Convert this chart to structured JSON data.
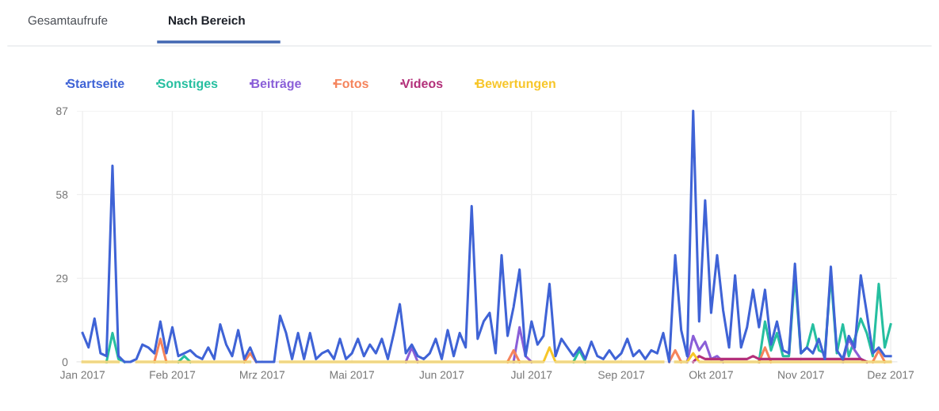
{
  "chart_data": {
    "type": "line",
    "title": "Nach Bereich",
    "annotations": [
      "Gesamtaufrufe"
    ],
    "categories": [
      "Jan 2017",
      null,
      null,
      null,
      null,
      null,
      null,
      null,
      null,
      null,
      null,
      null,
      null,
      null,
      null,
      "Feb 2017",
      null,
      null,
      null,
      null,
      null,
      null,
      null,
      null,
      null,
      null,
      null,
      null,
      null,
      null,
      "Mrz 2017",
      null,
      null,
      null,
      null,
      null,
      null,
      null,
      null,
      null,
      null,
      null,
      null,
      null,
      null,
      "Mai 2017",
      null,
      null,
      null,
      null,
      null,
      null,
      null,
      null,
      null,
      null,
      null,
      null,
      null,
      null,
      "Jun 2017",
      null,
      null,
      null,
      null,
      null,
      null,
      null,
      null,
      null,
      null,
      null,
      null,
      null,
      null,
      "Jul 2017",
      null,
      null,
      null,
      null,
      null,
      null,
      null,
      null,
      null,
      null,
      null,
      null,
      null,
      null,
      "Sep 2017",
      null,
      null,
      null,
      null,
      null,
      null,
      null,
      null,
      null,
      null,
      null,
      null,
      null,
      null,
      "Okt 2017",
      null,
      null,
      null,
      null,
      null,
      null,
      null,
      null,
      null,
      null,
      null,
      null,
      null,
      null,
      "Nov 2017",
      null,
      null,
      null,
      null,
      null,
      null,
      null,
      null,
      null,
      null,
      null,
      null,
      null,
      null,
      "Dez 2017"
    ],
    "ylim": [
      0,
      87
    ],
    "yticks": [
      0,
      29,
      58,
      87
    ],
    "grid": true,
    "legend": "top left",
    "marker": "none",
    "line_style": "solid",
    "series": [
      {
        "name": "Startseite",
        "color": "#3f63d6",
        "values": [
          10,
          5,
          15,
          3,
          2,
          68,
          2,
          0,
          0,
          1,
          6,
          5,
          3,
          14,
          3,
          12,
          2,
          3,
          4,
          2,
          1,
          5,
          1,
          13,
          6,
          2,
          11,
          1,
          5,
          0,
          0,
          0,
          0,
          16,
          10,
          1,
          10,
          1,
          10,
          1,
          3,
          4,
          1,
          8,
          1,
          3,
          8,
          2,
          6,
          3,
          8,
          1,
          10,
          20,
          3,
          6,
          2,
          1,
          3,
          8,
          1,
          11,
          2,
          10,
          5,
          54,
          8,
          14,
          17,
          3,
          37,
          9,
          19,
          32,
          2,
          14,
          6,
          9,
          27,
          2,
          8,
          5,
          2,
          5,
          1,
          7,
          2,
          1,
          4,
          1,
          3,
          8,
          2,
          4,
          1,
          4,
          3,
          10,
          0,
          37,
          11,
          2,
          87,
          14,
          56,
          17,
          37,
          18,
          5,
          30,
          5,
          12,
          25,
          12,
          25,
          6,
          14,
          4,
          3,
          34,
          3,
          5,
          3,
          8,
          1,
          33,
          4,
          1,
          9,
          5,
          30,
          17,
          3,
          5,
          2,
          2
        ]
      },
      {
        "name": "Sonstiges",
        "color": "#26bfa0",
        "values": [
          null,
          null,
          null,
          null,
          0,
          10,
          1,
          0,
          null,
          null,
          null,
          null,
          null,
          null,
          null,
          null,
          0,
          2,
          0,
          null,
          null,
          null,
          null,
          null,
          null,
          null,
          null,
          null,
          null,
          null,
          null,
          null,
          null,
          null,
          null,
          null,
          null,
          null,
          null,
          null,
          null,
          null,
          null,
          null,
          null,
          null,
          null,
          null,
          null,
          null,
          null,
          null,
          null,
          null,
          null,
          null,
          null,
          null,
          null,
          null,
          null,
          null,
          null,
          null,
          null,
          null,
          null,
          null,
          null,
          null,
          null,
          null,
          null,
          null,
          null,
          null,
          null,
          null,
          null,
          null,
          null,
          null,
          0,
          4,
          0,
          null,
          null,
          null,
          null,
          null,
          null,
          null,
          null,
          null,
          null,
          null,
          null,
          null,
          null,
          null,
          null,
          null,
          null,
          null,
          null,
          null,
          null,
          null,
          null,
          null,
          null,
          null,
          null,
          0,
          14,
          4,
          10,
          2,
          2,
          30,
          3,
          5,
          13,
          4,
          3,
          30,
          3,
          13,
          2,
          8,
          15,
          10,
          2,
          27,
          5,
          13
        ]
      },
      {
        "name": "Beiträge",
        "color": "#8a5fd8",
        "values": [
          null,
          null,
          null,
          null,
          null,
          null,
          null,
          null,
          null,
          null,
          null,
          null,
          null,
          null,
          null,
          null,
          null,
          null,
          null,
          null,
          null,
          null,
          null,
          null,
          null,
          null,
          null,
          null,
          null,
          null,
          null,
          null,
          null,
          null,
          null,
          null,
          null,
          null,
          null,
          null,
          null,
          null,
          null,
          null,
          null,
          null,
          null,
          null,
          null,
          null,
          null,
          null,
          null,
          null,
          0,
          5,
          0,
          null,
          null,
          null,
          null,
          null,
          null,
          null,
          null,
          null,
          null,
          null,
          null,
          null,
          null,
          null,
          0,
          12,
          2,
          0,
          null,
          null,
          null,
          null,
          null,
          null,
          null,
          null,
          null,
          null,
          null,
          null,
          null,
          null,
          null,
          null,
          null,
          null,
          null,
          null,
          null,
          null,
          null,
          null,
          null,
          0,
          9,
          4,
          7,
          1,
          2,
          0,
          null,
          null,
          null,
          null,
          null,
          null,
          null,
          null,
          null,
          null,
          null,
          null,
          null,
          null,
          null,
          null,
          null,
          null,
          null,
          0,
          8,
          4,
          1,
          0,
          null,
          null,
          null,
          null
        ]
      },
      {
        "name": "Fotos",
        "color": "#f5845c",
        "values": [
          null,
          null,
          null,
          null,
          null,
          null,
          null,
          null,
          null,
          null,
          null,
          null,
          0,
          8,
          0,
          null,
          null,
          null,
          null,
          null,
          null,
          null,
          null,
          null,
          null,
          null,
          null,
          0,
          3,
          0,
          null,
          null,
          null,
          null,
          null,
          null,
          null,
          null,
          null,
          null,
          null,
          null,
          null,
          null,
          null,
          null,
          null,
          null,
          null,
          null,
          null,
          null,
          null,
          null,
          null,
          null,
          null,
          null,
          null,
          null,
          null,
          null,
          null,
          null,
          null,
          null,
          null,
          null,
          null,
          null,
          null,
          0,
          4,
          0,
          null,
          null,
          null,
          null,
          null,
          null,
          null,
          null,
          null,
          null,
          null,
          null,
          null,
          null,
          null,
          null,
          null,
          null,
          null,
          null,
          null,
          null,
          null,
          null,
          0,
          4,
          0,
          null,
          null,
          null,
          null,
          null,
          null,
          null,
          null,
          null,
          null,
          null,
          null,
          0,
          5,
          0,
          null,
          null,
          null,
          null,
          null,
          null,
          null,
          null,
          null,
          null,
          null,
          null,
          null,
          null,
          null,
          null,
          0,
          4,
          0,
          null
        ]
      },
      {
        "name": "Videos",
        "color": "#b3307a",
        "values": [
          null,
          null,
          null,
          null,
          null,
          null,
          null,
          null,
          null,
          null,
          null,
          null,
          null,
          null,
          null,
          null,
          null,
          null,
          null,
          null,
          null,
          null,
          null,
          null,
          null,
          null,
          null,
          null,
          null,
          null,
          null,
          null,
          null,
          null,
          null,
          null,
          null,
          null,
          null,
          null,
          null,
          null,
          null,
          null,
          null,
          null,
          null,
          null,
          null,
          null,
          null,
          null,
          null,
          null,
          null,
          null,
          null,
          null,
          null,
          null,
          null,
          null,
          null,
          null,
          null,
          null,
          null,
          null,
          null,
          null,
          null,
          null,
          null,
          null,
          null,
          null,
          null,
          null,
          null,
          null,
          null,
          null,
          null,
          null,
          null,
          null,
          null,
          null,
          null,
          null,
          null,
          null,
          null,
          null,
          null,
          null,
          null,
          null,
          null,
          null,
          null,
          null,
          0,
          2,
          1,
          1,
          1,
          1,
          1,
          1,
          1,
          1,
          2,
          1,
          1,
          1,
          1,
          1,
          1,
          1,
          1,
          1,
          1,
          1,
          1,
          1,
          1,
          1,
          1,
          1,
          1,
          0,
          null,
          null,
          null,
          null
        ]
      },
      {
        "name": "Bewertungen",
        "color": "#f7c62a",
        "values": [
          0,
          0,
          0,
          0,
          0,
          0,
          0,
          null,
          null,
          0,
          0,
          0,
          0,
          0,
          0,
          0,
          0,
          0,
          0,
          0,
          0,
          0,
          0,
          0,
          0,
          0,
          0,
          0,
          0,
          null,
          null,
          null,
          null,
          0,
          0,
          0,
          0,
          0,
          0,
          0,
          0,
          0,
          0,
          0,
          0,
          0,
          0,
          0,
          0,
          0,
          0,
          0,
          0,
          0,
          0,
          0,
          0,
          0,
          0,
          0,
          0,
          0,
          0,
          0,
          0,
          0,
          0,
          0,
          0,
          0,
          0,
          0,
          0,
          0,
          0,
          0,
          0,
          0,
          5,
          0,
          0,
          0,
          0,
          0,
          0,
          0,
          0,
          0,
          0,
          0,
          0,
          0,
          0,
          0,
          0,
          0,
          0,
          0,
          null,
          0,
          0,
          0,
          3,
          0,
          0,
          0,
          0,
          0,
          0,
          0,
          0,
          0,
          0,
          0,
          0,
          0,
          0,
          0,
          0,
          0,
          0,
          0,
          0,
          0,
          0,
          0,
          0,
          0,
          0,
          0,
          0,
          0,
          0,
          0,
          0,
          0
        ]
      }
    ]
  }
}
